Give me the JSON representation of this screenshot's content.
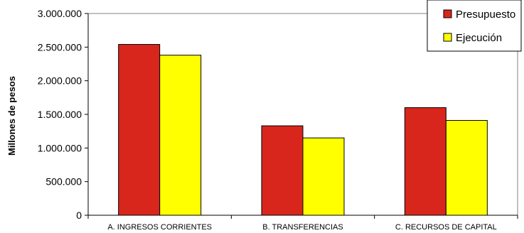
{
  "chart_data": {
    "type": "bar",
    "ylabel": "Millones de pesos",
    "xlabel": "",
    "categories": [
      "A. INGRESOS CORRIENTES",
      "B. TRANSFERENCIAS",
      "C. RECURSOS DE CAPITAL"
    ],
    "series": [
      {
        "name": "Presupuesto",
        "values": [
          2540000,
          1330000,
          1600000
        ],
        "color": "#d8261d"
      },
      {
        "name": "Ejecución",
        "values": [
          2380000,
          1150000,
          1410000
        ],
        "color": "#ffff00"
      }
    ],
    "ylim": [
      0,
      3000000
    ],
    "yticks": [
      0,
      500000,
      1000000,
      1500000,
      2000000,
      2500000,
      3000000
    ],
    "ytick_labels": [
      "0",
      "500.000",
      "1.000.000",
      "1.500.000",
      "2.000.000",
      "2.500.000",
      "3.000.000"
    ],
    "grid": false,
    "legend_position": "top-right"
  }
}
